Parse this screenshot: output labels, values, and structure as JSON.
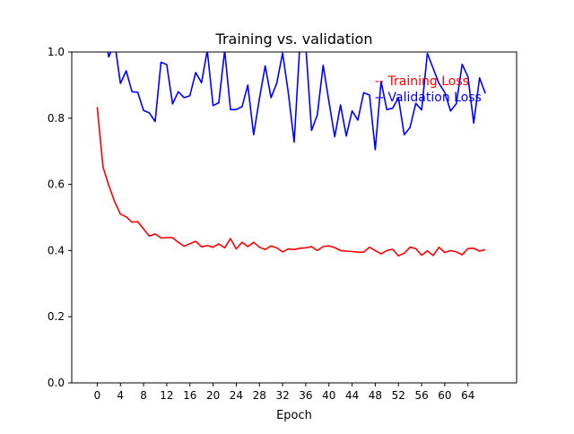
{
  "chart_data": {
    "type": "line",
    "title": "Training vs. validation",
    "xlabel": "Epoch",
    "ylabel": "",
    "xlim": [
      -4.4,
      72.4
    ],
    "ylim": [
      0.0,
      1.0
    ],
    "xticks": [
      0,
      4,
      8,
      12,
      16,
      20,
      24,
      28,
      32,
      36,
      40,
      44,
      48,
      52,
      56,
      60,
      64
    ],
    "yticks": [
      0.0,
      0.2,
      0.4,
      0.6,
      0.8,
      1.0
    ],
    "grid": false,
    "legend_position": "upper-right",
    "series": [
      {
        "name": "Training Loss",
        "legend_label": "-- Training Loss",
        "color": "#ff0000",
        "x": [
          0,
          1,
          2,
          3,
          4,
          5,
          6,
          7,
          8,
          9,
          10,
          11,
          12,
          13,
          14,
          15,
          16,
          17,
          18,
          19,
          20,
          21,
          22,
          23,
          24,
          25,
          26,
          27,
          28,
          29,
          30,
          31,
          32,
          33,
          34,
          35,
          36,
          37,
          38,
          39,
          40,
          41,
          42,
          43,
          44,
          45,
          46,
          47,
          48,
          49,
          50,
          51,
          52,
          53,
          54,
          55,
          56,
          57,
          58,
          59,
          60,
          61,
          62,
          63,
          64,
          65,
          66,
          67
        ],
        "values": [
          0.834,
          0.652,
          0.597,
          0.548,
          0.51,
          0.502,
          0.486,
          0.487,
          0.465,
          0.444,
          0.45,
          0.438,
          0.439,
          0.439,
          0.425,
          0.413,
          0.421,
          0.428,
          0.411,
          0.415,
          0.41,
          0.42,
          0.408,
          0.436,
          0.405,
          0.425,
          0.412,
          0.425,
          0.41,
          0.403,
          0.414,
          0.408,
          0.396,
          0.405,
          0.403,
          0.407,
          0.408,
          0.412,
          0.4,
          0.412,
          0.414,
          0.409,
          0.4,
          0.398,
          0.397,
          0.395,
          0.395,
          0.41,
          0.4,
          0.39,
          0.4,
          0.404,
          0.384,
          0.392,
          0.41,
          0.406,
          0.386,
          0.399,
          0.385,
          0.41,
          0.394,
          0.4,
          0.396,
          0.387,
          0.406,
          0.407,
          0.398,
          0.403
        ]
      },
      {
        "name": "Validation Loss",
        "legend_label": "-- Validation Loss",
        "color": "#0000ff",
        "x": [
          0,
          1,
          2,
          3,
          4,
          5,
          6,
          7,
          8,
          9,
          10,
          11,
          12,
          13,
          14,
          15,
          16,
          17,
          18,
          19,
          20,
          21,
          22,
          23,
          24,
          25,
          26,
          27,
          28,
          29,
          30,
          31,
          32,
          33,
          34,
          35,
          36,
          37,
          38,
          39,
          40,
          41,
          42,
          43,
          44,
          45,
          46,
          47,
          48,
          49,
          50,
          51,
          52,
          53,
          54,
          55,
          56,
          57,
          58,
          59,
          60,
          61,
          62,
          63,
          64,
          65,
          66,
          67
        ],
        "values": [
          1.04,
          1.08,
          0.985,
          1.03,
          0.905,
          0.943,
          0.88,
          0.878,
          0.823,
          0.816,
          0.79,
          0.969,
          0.962,
          0.843,
          0.88,
          0.862,
          0.868,
          0.938,
          0.907,
          1.005,
          0.838,
          0.847,
          1.005,
          0.826,
          0.826,
          0.835,
          0.9,
          0.75,
          0.86,
          0.958,
          0.862,
          0.906,
          0.997,
          0.876,
          0.728,
          1.03,
          1.02,
          0.763,
          0.81,
          0.96,
          0.851,
          0.744,
          0.84,
          0.746,
          0.822,
          0.794,
          0.877,
          0.87,
          0.705,
          0.911,
          0.826,
          0.83,
          0.862,
          0.75,
          0.772,
          0.845,
          0.825,
          0.996,
          0.95,
          0.905,
          0.878,
          0.822,
          0.844,
          0.963,
          0.925,
          0.785,
          0.922,
          0.875
        ]
      }
    ]
  }
}
